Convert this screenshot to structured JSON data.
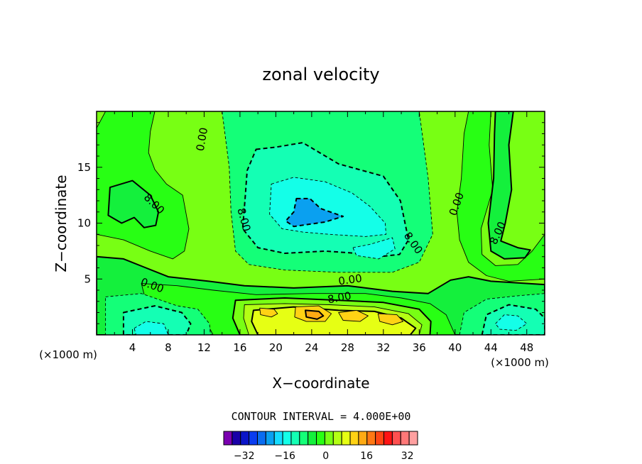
{
  "chart_data": {
    "type": "contour",
    "title": "zonal velocity",
    "xlabel": "X−coordinate",
    "ylabel": "Z−coordinate",
    "x_unit_label": "(×1000 m)",
    "z_unit_label": "(×1000 m)",
    "x_ticks": [
      "4",
      "8",
      "12",
      "16",
      "20",
      "24",
      "28",
      "32",
      "36",
      "40",
      "44",
      "48"
    ],
    "x_tick_values": [
      4,
      8,
      12,
      16,
      20,
      24,
      28,
      32,
      36,
      40,
      44,
      48
    ],
    "y_ticks": [
      "5",
      "10",
      "15"
    ],
    "y_tick_values": [
      5,
      10,
      15
    ],
    "xlim": [
      0,
      50
    ],
    "ylim": [
      0,
      20
    ],
    "contour_interval_text": "CONTOUR INTERVAL = 4.000E+00",
    "contour_labels": [
      {
        "text": "0.00",
        "x": 11.8,
        "z": 17.5,
        "angle": -80
      },
      {
        "text": "8.00",
        "x": 6.4,
        "z": 11.7,
        "angle": 45
      },
      {
        "text": "8.00",
        "x": 16.4,
        "z": 10.3,
        "angle": 75
      },
      {
        "text": "0.00",
        "x": 40.2,
        "z": 11.7,
        "angle": -70
      },
      {
        "text": "8.00",
        "x": 44.8,
        "z": 9.1,
        "angle": -65
      },
      {
        "text": "8.00",
        "x": 35.3,
        "z": 8.2,
        "angle": 55
      },
      {
        "text": "0.00",
        "x": 28.3,
        "z": 4.9,
        "angle": -8
      },
      {
        "text": "8.00",
        "x": 27.1,
        "z": 3.3,
        "angle": -10
      },
      {
        "text": "0.00",
        "x": 6.2,
        "z": 4.4,
        "angle": 20
      }
    ],
    "colorbar": {
      "tick_labels": [
        "−32",
        "−16",
        "0",
        "16",
        "32"
      ],
      "tick_values": [
        -32,
        -16,
        0,
        16,
        32
      ],
      "min": -40,
      "max": 36,
      "step": 4,
      "colors": [
        "#7a00b0",
        "#1a00a8",
        "#0a14c8",
        "#0a3cf0",
        "#0a6cf0",
        "#0aa0f0",
        "#14dcff",
        "#14ffe8",
        "#14ffb4",
        "#14ff78",
        "#14f03c",
        "#28ff14",
        "#78ff14",
        "#b4ff14",
        "#e6ff14",
        "#ffd214",
        "#ffaa14",
        "#ff7814",
        "#ff4614",
        "#ff1414",
        "#ff5050",
        "#ff7878",
        "#ffa0a0"
      ]
    },
    "regions": [
      {
        "level": -4,
        "color": "#14ff78",
        "points": [
          [
            14,
            20
          ],
          [
            36,
            20
          ],
          [
            37,
            14
          ],
          [
            37.5,
            9
          ],
          [
            36,
            6.5
          ],
          [
            33,
            5.6
          ],
          [
            27,
            5.6
          ],
          [
            21,
            5.8
          ],
          [
            17,
            6.3
          ],
          [
            15.5,
            7.5
          ],
          [
            15,
            11
          ],
          [
            14.8,
            15
          ]
        ]
      },
      {
        "level": -8,
        "color": "#14ffb4",
        "points": [
          [
            17.8,
            16.6
          ],
          [
            20,
            16.8
          ],
          [
            23,
            17.2
          ],
          [
            27,
            15.3
          ],
          [
            32,
            14.2
          ],
          [
            33.9,
            12
          ],
          [
            34.8,
            8.5
          ],
          [
            33.8,
            7.2
          ],
          [
            31.5,
            7
          ],
          [
            29,
            7.3
          ],
          [
            25.5,
            7.5
          ],
          [
            21,
            7.3
          ],
          [
            18,
            7.8
          ],
          [
            16.3,
            9.5
          ],
          [
            16.6,
            12.5
          ],
          [
            16.8,
            14.7
          ]
        ]
      },
      {
        "level": -12,
        "color": "#14ffe8",
        "points": [
          [
            19.5,
            13.5
          ],
          [
            22,
            14.1
          ],
          [
            25.5,
            13.7
          ],
          [
            28.5,
            12.7
          ],
          [
            30.5,
            11.5
          ],
          [
            32.2,
            10
          ],
          [
            32.3,
            9
          ],
          [
            30,
            8.8
          ],
          [
            26,
            9
          ],
          [
            23,
            9.2
          ],
          [
            20.7,
            9.5
          ],
          [
            19.3,
            10.8
          ]
        ]
      },
      {
        "level": -12,
        "color": "#14ffe8",
        "points": [
          [
            28.6,
            7.8
          ],
          [
            30.5,
            8.1
          ],
          [
            33,
            8.7
          ],
          [
            33.3,
            7.7
          ],
          [
            31.5,
            6.8
          ],
          [
            29,
            7.1
          ]
        ]
      },
      {
        "level": -16,
        "color": "#0aa0f0",
        "points": [
          [
            22.3,
            12.2
          ],
          [
            23.8,
            12.2
          ],
          [
            25,
            11.3
          ],
          [
            27.5,
            10.6
          ],
          [
            25.5,
            10.1
          ],
          [
            22,
            9.7
          ],
          [
            21.1,
            10.2
          ],
          [
            22,
            11
          ]
        ]
      },
      {
        "level": 4,
        "color": "#28ff14",
        "points": [
          [
            0,
            18.5
          ],
          [
            1,
            20
          ],
          [
            6.5,
            20
          ],
          [
            6,
            18.2
          ],
          [
            5.8,
            16.3
          ],
          [
            6.5,
            14.8
          ],
          [
            7.8,
            13.5
          ],
          [
            9.6,
            12.5
          ],
          [
            10.3,
            9.5
          ],
          [
            9.8,
            7.5
          ],
          [
            8.5,
            6.8
          ],
          [
            6,
            7.5
          ],
          [
            3,
            8.5
          ],
          [
            0,
            9
          ]
        ]
      },
      {
        "level": 4,
        "color": "#28ff14",
        "points": [
          [
            41.5,
            20
          ],
          [
            44,
            20
          ],
          [
            43.8,
            17
          ],
          [
            44.2,
            13
          ],
          [
            42.9,
            9.5
          ],
          [
            43,
            7.2
          ],
          [
            44.5,
            6.2
          ],
          [
            47,
            6.3
          ],
          [
            48.6,
            7.5
          ],
          [
            50,
            9
          ],
          [
            50,
            5
          ],
          [
            46,
            4.8
          ],
          [
            43.5,
            5.3
          ],
          [
            41.5,
            6.5
          ],
          [
            40.5,
            8.5
          ],
          [
            40.2,
            11
          ],
          [
            40.7,
            14
          ],
          [
            41,
            18
          ]
        ]
      },
      {
        "level": 8,
        "color": "#14f03c",
        "points": [
          [
            1.5,
            13.2
          ],
          [
            4,
            13.8
          ],
          [
            6,
            12.5
          ],
          [
            6.9,
            11
          ],
          [
            6.6,
            9.8
          ],
          [
            5.3,
            9.6
          ],
          [
            4.2,
            10.5
          ],
          [
            2.8,
            10
          ],
          [
            1.3,
            10.7
          ]
        ]
      },
      {
        "level": 8,
        "color": "#14f03c",
        "points": [
          [
            44.5,
            20
          ],
          [
            46.5,
            20
          ],
          [
            46,
            17
          ],
          [
            46.3,
            13
          ],
          [
            45.6,
            10
          ],
          [
            45.1,
            8.4
          ],
          [
            47,
            7.8
          ],
          [
            48.4,
            7.6
          ],
          [
            47.8,
            6.9
          ],
          [
            45.5,
            6.8
          ],
          [
            44,
            7.5
          ],
          [
            43.7,
            10
          ],
          [
            44.3,
            14
          ],
          [
            44.4,
            18
          ]
        ]
      },
      {
        "level": 0,
        "color": "#14f03c",
        "points": [
          [
            0,
            7
          ],
          [
            3,
            6.8
          ],
          [
            5.5,
            6
          ],
          [
            8,
            5.2
          ],
          [
            12.5,
            4.8
          ],
          [
            16.5,
            4.4
          ],
          [
            22,
            4.2
          ],
          [
            28,
            4.4
          ],
          [
            33,
            3.9
          ],
          [
            37,
            3.7
          ],
          [
            39.5,
            4.9
          ],
          [
            41.5,
            5.2
          ],
          [
            44,
            4.8
          ],
          [
            50,
            4.5
          ],
          [
            50,
            0
          ],
          [
            0,
            0
          ]
        ]
      },
      {
        "level": 4,
        "color": "#28ff14",
        "points": [
          [
            5,
            4.6
          ],
          [
            9,
            4.4
          ],
          [
            13,
            4
          ],
          [
            17.8,
            3.6
          ],
          [
            24,
            3.7
          ],
          [
            30,
            3.7
          ],
          [
            34,
            3.3
          ],
          [
            37.2,
            2.8
          ],
          [
            39,
            1.8
          ],
          [
            40,
            0
          ],
          [
            13,
            0
          ],
          [
            12,
            1.5
          ],
          [
            9,
            2.3
          ],
          [
            5.5,
            3
          ]
        ]
      },
      {
        "level": -4,
        "color": "#14ff78",
        "points": [
          [
            1,
            3.4
          ],
          [
            5,
            3.7
          ],
          [
            9,
            2.6
          ],
          [
            11.3,
            2.3
          ],
          [
            12.6,
            1
          ],
          [
            12.7,
            0
          ],
          [
            1,
            0
          ]
        ]
      },
      {
        "level": -4,
        "color": "#14ff78",
        "points": [
          [
            40.5,
            0
          ],
          [
            41,
            2
          ],
          [
            43.5,
            3.2
          ],
          [
            47,
            3.5
          ],
          [
            50,
            3.7
          ],
          [
            50,
            0
          ]
        ]
      },
      {
        "level": -8,
        "color": "#14ffb4",
        "points": [
          [
            3,
            2
          ],
          [
            6.5,
            2.6
          ],
          [
            9.5,
            2
          ],
          [
            10.5,
            1
          ],
          [
            10,
            0
          ],
          [
            3,
            0
          ]
        ]
      },
      {
        "level": -8,
        "color": "#14ffb4",
        "points": [
          [
            43,
            0
          ],
          [
            43.5,
            1.8
          ],
          [
            46,
            2.7
          ],
          [
            49,
            2.3
          ],
          [
            50,
            1.5
          ],
          [
            50,
            0
          ]
        ]
      },
      {
        "level": -12,
        "color": "#14ffe8",
        "points": [
          [
            4.2,
            0.6
          ],
          [
            5.5,
            1.2
          ],
          [
            7.5,
            1
          ],
          [
            8,
            0
          ],
          [
            4.4,
            0
          ]
        ]
      },
      {
        "level": -12,
        "color": "#14ffe8",
        "points": [
          [
            44.5,
            1
          ],
          [
            45.5,
            1.8
          ],
          [
            47,
            1.7
          ],
          [
            48,
            1
          ],
          [
            46.8,
            0.4
          ],
          [
            45,
            0.5
          ]
        ]
      },
      {
        "level": 8,
        "color": "#78ff14",
        "points": [
          [
            15.5,
            3.1
          ],
          [
            21,
            3.3
          ],
          [
            27,
            3.1
          ],
          [
            32,
            2.9
          ],
          [
            36,
            2.3
          ],
          [
            37.3,
            1.2
          ],
          [
            37.2,
            0
          ],
          [
            16,
            0
          ],
          [
            15.2,
            1.5
          ]
        ]
      },
      {
        "level": 12,
        "color": "#b4ff14",
        "points": [
          [
            16.5,
            2.7
          ],
          [
            21,
            2.8
          ],
          [
            26,
            2.7
          ],
          [
            31,
            2.5
          ],
          [
            34.8,
            1.9
          ],
          [
            36.3,
            0.9
          ],
          [
            36,
            0
          ],
          [
            17,
            0
          ],
          [
            16.4,
            1.5
          ]
        ]
      },
      {
        "level": 16,
        "color": "#e6ff14",
        "points": [
          [
            17.5,
            2.2
          ],
          [
            22,
            2.5
          ],
          [
            27,
            2.2
          ],
          [
            31,
            2.1
          ],
          [
            34,
            1.5
          ],
          [
            35.6,
            0.6
          ],
          [
            35,
            0
          ],
          [
            18,
            0
          ],
          [
            17.3,
            1.2
          ]
        ]
      },
      {
        "level": 20,
        "color": "#ffd214",
        "points": [
          [
            18.2,
            2.4
          ],
          [
            19.8,
            2.3
          ],
          [
            20.2,
            1.9
          ],
          [
            19.5,
            1.6
          ],
          [
            18.3,
            1.8
          ]
        ]
      },
      {
        "level": 20,
        "color": "#ffd214",
        "points": [
          [
            22.2,
            2.5
          ],
          [
            24.8,
            2.6
          ],
          [
            26.2,
            1.9
          ],
          [
            25.5,
            1.2
          ],
          [
            23.4,
            1.2
          ],
          [
            22.1,
            1.6
          ]
        ]
      },
      {
        "level": 20,
        "color": "#ffd214",
        "points": [
          [
            27,
            2
          ],
          [
            29,
            2.2
          ],
          [
            30.3,
            1.7
          ],
          [
            29.4,
            1.2
          ],
          [
            27.5,
            1.3
          ]
        ]
      },
      {
        "level": 20,
        "color": "#ffd214",
        "points": [
          [
            31.4,
            1.9
          ],
          [
            33.5,
            1.8
          ],
          [
            34.2,
            1.2
          ],
          [
            33,
            0.9
          ],
          [
            31.6,
            1.2
          ]
        ]
      },
      {
        "level": 24,
        "color": "#ffaa14",
        "points": [
          [
            23.3,
            2.2
          ],
          [
            24.8,
            2.1
          ],
          [
            25.3,
            1.7
          ],
          [
            24.6,
            1.4
          ],
          [
            23.4,
            1.6
          ]
        ]
      }
    ]
  }
}
